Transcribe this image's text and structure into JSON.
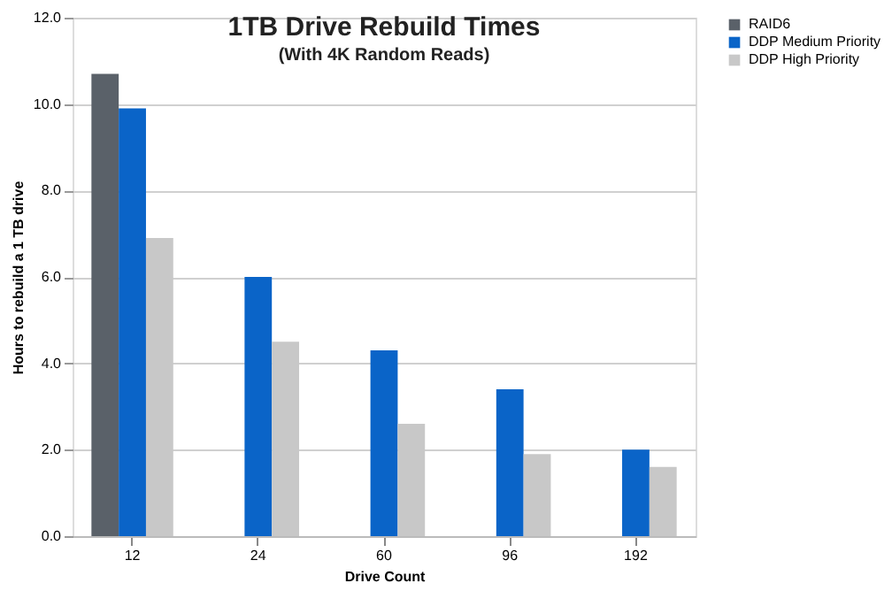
{
  "chart_data": {
    "type": "bar",
    "title": "1TB Drive Rebuild Times",
    "subtitle": "(With 4K Random Reads)",
    "xlabel": "Drive Count",
    "ylabel": "Hours to rebuild a 1 TB drive",
    "categories": [
      "12",
      "24",
      "60",
      "96",
      "192"
    ],
    "series": [
      {
        "name": "RAID6",
        "color": "#5a6169",
        "values": [
          10.7,
          null,
          null,
          null,
          null
        ]
      },
      {
        "name": "DDP Medium Priority",
        "color": "#0a64c8",
        "values": [
          9.9,
          6.0,
          4.3,
          3.4,
          2.0
        ]
      },
      {
        "name": "DDP High Priority",
        "color": "#c8c8c8",
        "values": [
          6.9,
          4.5,
          2.6,
          1.9,
          1.6
        ]
      }
    ],
    "ylim": [
      0,
      12
    ],
    "yticks": [
      {
        "value": 0,
        "label": "0.0"
      },
      {
        "value": 2,
        "label": "2.0"
      },
      {
        "value": 4,
        "label": "4.0"
      },
      {
        "value": 6,
        "label": "6.0"
      },
      {
        "value": 8,
        "label": "8.0"
      },
      {
        "value": 10,
        "label": "10.0"
      },
      {
        "value": 12,
        "label": "12.0"
      }
    ],
    "grid": "y",
    "legend": "right"
  }
}
